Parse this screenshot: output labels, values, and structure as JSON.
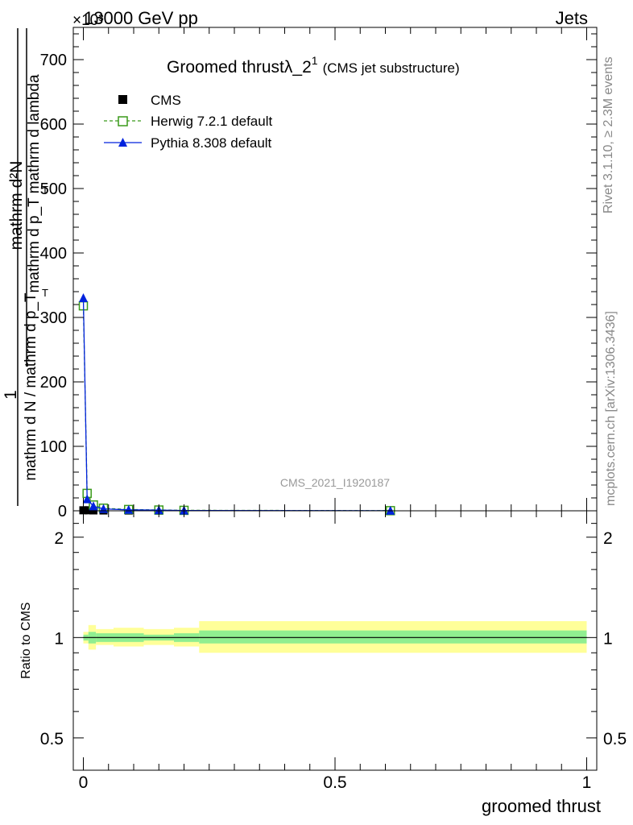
{
  "header": {
    "left": "13000 GeV pp",
    "right": "Jets",
    "exponent": "×10³"
  },
  "side_labels": {
    "rivet": "Rivet 3.1.10, ≥ 2.3M events",
    "mcplots": "mcplots.cern.ch [arXiv:1306.3436]"
  },
  "watermark": "CMS_2021_I1920187",
  "chart_data": [
    {
      "type": "line",
      "panel": "main",
      "title_main": "Groomed thrustλ_2",
      "title_sup": "1",
      "title_paren": "(CMS jet substructure)",
      "ylabel_top": "1",
      "ylabel_numer": "mathrm d²N",
      "ylabel_denom": "mathrm d p_T mathrm d lambda",
      "ylabel_bottom": "mathrm d N / mathrm d p_T",
      "ylabel_top_sub": "T",
      "ylabel_bottom_sub": "T",
      "xlim": [
        -0.02,
        1.02
      ],
      "ylim": [
        0,
        750
      ],
      "y_ticks": [
        0,
        100,
        200,
        300,
        400,
        500,
        600,
        700
      ],
      "y_tick_labels": [
        "0",
        "100",
        "200",
        "300",
        "400",
        "500",
        "600",
        "700"
      ],
      "legend_position": "top-left",
      "series": [
        {
          "name": "CMS",
          "style": "marker-square-filled",
          "color": "#000000",
          "x": [
            0.0,
            0.01,
            0.02,
            0.04,
            0.09,
            0.15,
            0.2,
            0.61
          ],
          "y": [
            0.8,
            0.8,
            0.6,
            0.5,
            0.4,
            0.3,
            0.2,
            0.1
          ]
        },
        {
          "name": "Herwig 7.2.1 default",
          "style": "dashed-open-square",
          "color": "#3a9a1a",
          "x": [
            0.0,
            0.0075,
            0.02,
            0.04,
            0.09,
            0.15,
            0.2,
            0.61
          ],
          "y": [
            318,
            27,
            9,
            4,
            2,
            1.2,
            0.7,
            0.2
          ]
        },
        {
          "name": "Pythia 8.308 default",
          "style": "solid-filled-triangle",
          "color": "#0022dd",
          "x": [
            0.0,
            0.0075,
            0.02,
            0.04,
            0.09,
            0.15,
            0.2,
            0.61
          ],
          "y": [
            330,
            18,
            7,
            3,
            1.5,
            1,
            0.5,
            0.1
          ]
        }
      ]
    },
    {
      "type": "area",
      "panel": "ratio",
      "ylabel": "Ratio to CMS",
      "xlabel": "groomed thrust",
      "xlim": [
        -0.02,
        1.02
      ],
      "ylim": [
        0.4,
        2.4
      ],
      "log_y": true,
      "x_ticks": [
        0,
        0.5,
        1
      ],
      "x_tick_labels": [
        "0",
        "0.5",
        "1"
      ],
      "y_ticks": [
        0.5,
        1,
        2
      ],
      "y_tick_labels": [
        "0.5",
        "1",
        "2"
      ],
      "bands": [
        {
          "name": "total uncertainty",
          "color": "#ffff99",
          "bins": [
            {
              "x0": 0.0,
              "x1": 0.01,
              "lo": 0.96,
              "hi": 1.04
            },
            {
              "x0": 0.01,
              "x1": 0.025,
              "lo": 0.92,
              "hi": 1.09
            },
            {
              "x0": 0.025,
              "x1": 0.06,
              "lo": 0.95,
              "hi": 1.06
            },
            {
              "x0": 0.06,
              "x1": 0.12,
              "lo": 0.94,
              "hi": 1.07
            },
            {
              "x0": 0.12,
              "x1": 0.18,
              "lo": 0.95,
              "hi": 1.06
            },
            {
              "x0": 0.18,
              "x1": 0.23,
              "lo": 0.94,
              "hi": 1.07
            },
            {
              "x0": 0.23,
              "x1": 1.0,
              "lo": 0.9,
              "hi": 1.12
            }
          ]
        },
        {
          "name": "stat uncertainty",
          "color": "#90ee90",
          "bins": [
            {
              "x0": 0.0,
              "x1": 0.01,
              "lo": 0.98,
              "hi": 1.02
            },
            {
              "x0": 0.01,
              "x1": 0.025,
              "lo": 0.96,
              "hi": 1.04
            },
            {
              "x0": 0.025,
              "x1": 0.06,
              "lo": 0.97,
              "hi": 1.03
            },
            {
              "x0": 0.06,
              "x1": 0.12,
              "lo": 0.97,
              "hi": 1.03
            },
            {
              "x0": 0.12,
              "x1": 0.18,
              "lo": 0.98,
              "hi": 1.02
            },
            {
              "x0": 0.18,
              "x1": 0.23,
              "lo": 0.97,
              "hi": 1.03
            },
            {
              "x0": 0.23,
              "x1": 1.0,
              "lo": 0.96,
              "hi": 1.05
            }
          ]
        }
      ],
      "reference_line": 1
    }
  ]
}
